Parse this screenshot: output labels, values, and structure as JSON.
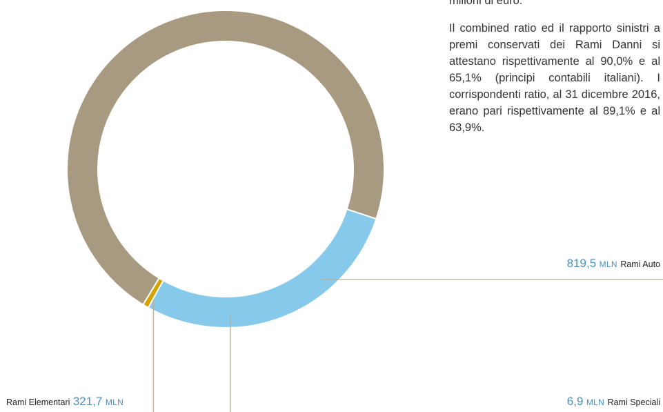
{
  "text": {
    "intro_fragment": "milioni di euro.",
    "paragraph": "Il combined ratio ed il rapporto sinistri a premi conservati dei Rami Danni si attestano rispettivamente al 90,0% e al 65,1% (principi contabili italiani). I corrispondenti ratio, al 31 dicembre 2016, erano pari rispettivamente al 89,1% e al 63,9%."
  },
  "chart_data": {
    "type": "pie",
    "variant": "donut",
    "unit": "MLN",
    "slices": [
      {
        "name": "Rami Auto",
        "value_label": "819,5",
        "value": 819.5,
        "color": "#a89a80"
      },
      {
        "name": "Rami Speciali",
        "value_label": "6,9",
        "value": 6.9,
        "color": "#d4a300"
      },
      {
        "name": "Rami Elementari",
        "value_label": "321,7",
        "value": 321.7,
        "color": "#87c9ea"
      }
    ],
    "leader_line_color": "#b8ad98"
  }
}
